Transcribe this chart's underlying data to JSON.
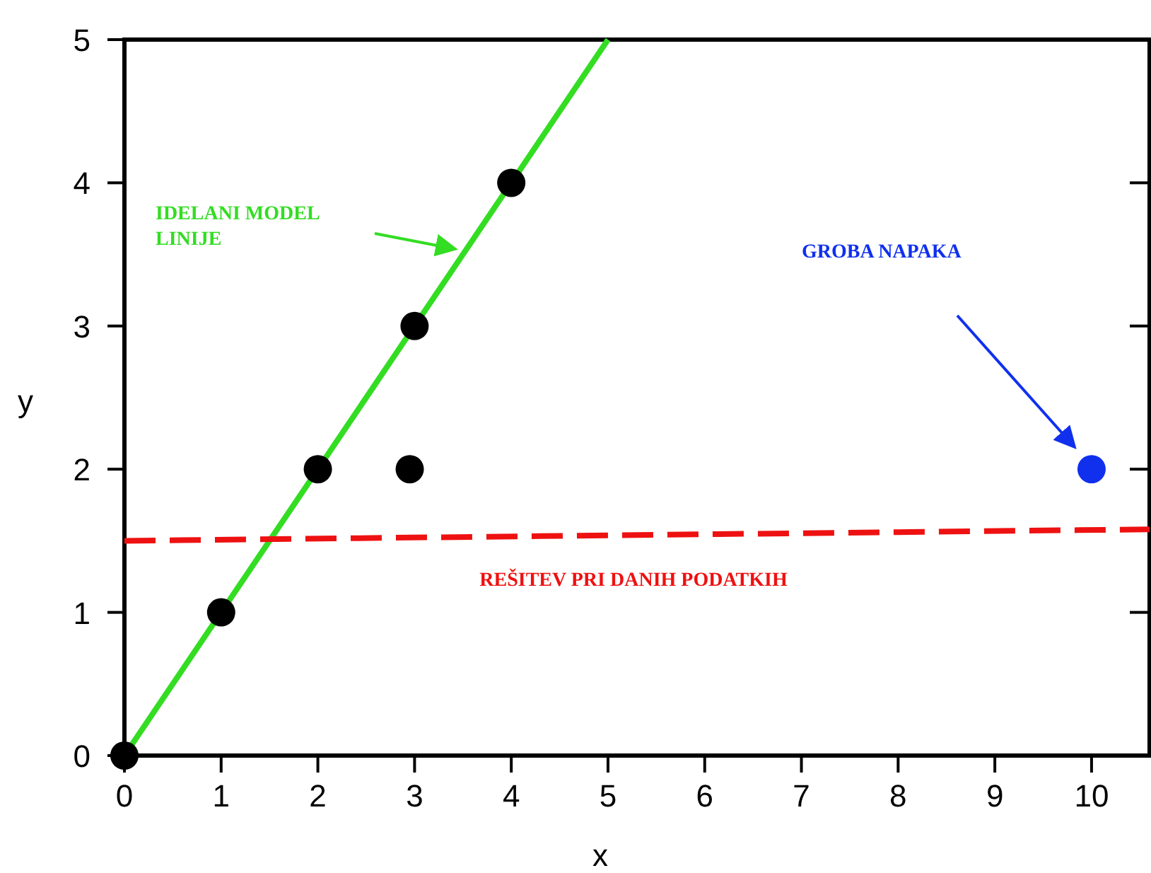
{
  "chart_data": {
    "type": "scatter",
    "xlabel": "x",
    "ylabel": "y",
    "xlim": [
      0,
      10.6
    ],
    "ylim": [
      0,
      5
    ],
    "xticks": [
      0,
      1,
      2,
      3,
      4,
      5,
      6,
      7,
      8,
      9,
      10
    ],
    "yticks": [
      0,
      1,
      2,
      3,
      4,
      5
    ],
    "grid": false,
    "marker": "circle",
    "series": [
      {
        "type": "line",
        "color": "#33dd22",
        "x": [
          0,
          5
        ],
        "values": [
          0,
          5
        ],
        "line_style": "solid",
        "marker": "none"
      },
      {
        "color": "#1030ee",
        "x": [
          10
        ],
        "values": [
          2
        ]
      },
      {
        "type": "line",
        "color": "#ee1111",
        "x": [
          0,
          10.6
        ],
        "values": [
          1.5,
          1.58
        ],
        "line_style": "dashed",
        "marker": "none"
      },
      {
        "color": "#000000",
        "x": [
          0,
          1,
          2,
          3,
          4,
          2.95
        ],
        "values": [
          0,
          1,
          2,
          3,
          4,
          2
        ]
      }
    ],
    "annotations": [
      "IDELANI MODEL LINIJE",
      "GROBA NAPAKA",
      "REŠITEV PRI DANIH PODATKIH"
    ]
  }
}
